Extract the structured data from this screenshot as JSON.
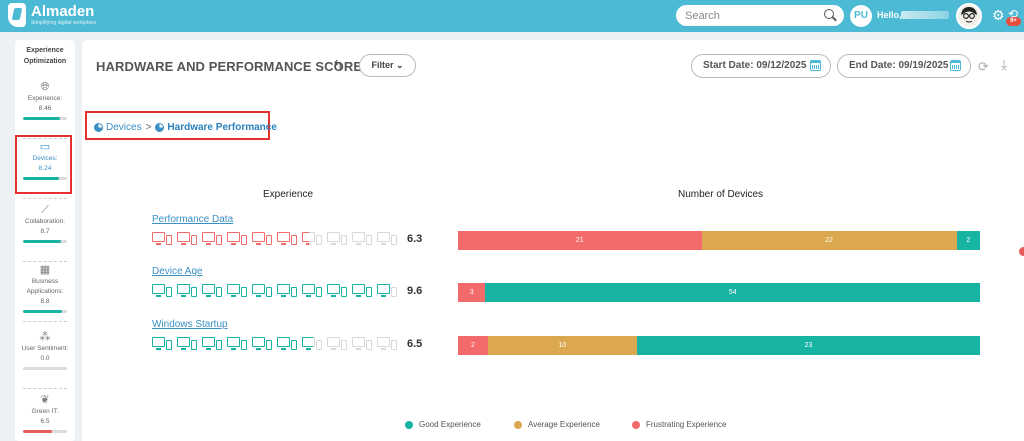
{
  "app": {
    "name": "Almaden",
    "tagline": "Simplifying digital workplace"
  },
  "header": {
    "search_placeholder": "Search",
    "avatar_initials": "PU",
    "greeting": "Hello,",
    "notification_badge": "9+"
  },
  "sidebar": {
    "heading": "Experience Optimization",
    "items": [
      {
        "label": "Experience:",
        "value": "8.46",
        "fill": 0.846,
        "color": "#17b3a3",
        "icon": "globe-icon"
      },
      {
        "label": "Devices:",
        "value": "8.24",
        "fill": 0.824,
        "color": "#17b3a3",
        "icon": "devices-icon"
      },
      {
        "label": "Collaboration:",
        "value": "8.7",
        "fill": 0.87,
        "color": "#17b3a3",
        "icon": "collaboration-icon"
      },
      {
        "label": "Business Applications:",
        "value": "8.8",
        "fill": 0.88,
        "color": "#17b3a3",
        "icon": "building-icon"
      },
      {
        "label": "User Sentiment:",
        "value": "0.0",
        "fill": 0.0,
        "color": "#17b3a3",
        "icon": "users-icon"
      },
      {
        "label": "Green IT:",
        "value": "6.5",
        "fill": 0.65,
        "color": "#e85a5a",
        "icon": "leaf-icon"
      }
    ]
  },
  "page": {
    "title": "HARDWARE AND PERFORMANCE SCORE",
    "filter_label": "Filter",
    "start_date_label": "Start Date: 09/12/2025",
    "end_date_label": "End Date: 09/19/2025"
  },
  "breadcrumb": {
    "root": "Devices",
    "separator": ">",
    "current": "Hardware Performance"
  },
  "columns": {
    "experience": "Experience",
    "devices": "Number of Devices"
  },
  "colors": {
    "good": "#17b3a3",
    "average": "#dba84f",
    "frustrating": "#f26a6a"
  },
  "metrics": [
    {
      "name": "Performance Data",
      "score": "6.3",
      "score_value": 6.3,
      "icon_color": "#f26a6a",
      "segments": [
        {
          "kind": "frustrating",
          "value": 21
        },
        {
          "kind": "average",
          "value": 22
        },
        {
          "kind": "good",
          "value": 2
        }
      ]
    },
    {
      "name": "Device Age",
      "score": "9.6",
      "score_value": 9.6,
      "icon_color": "#17b3a3",
      "segments": [
        {
          "kind": "frustrating",
          "value": 3
        },
        {
          "kind": "good",
          "value": 54
        }
      ]
    },
    {
      "name": "Windows Startup",
      "score": "6.5",
      "score_value": 6.5,
      "icon_color": "#17b3a3",
      "segments": [
        {
          "kind": "frustrating",
          "value": 2
        },
        {
          "kind": "average",
          "value": 10
        },
        {
          "kind": "good",
          "value": 23
        }
      ]
    }
  ],
  "legend": [
    {
      "label": "Good Experience",
      "kind": "good"
    },
    {
      "label": "Average Experience",
      "kind": "average"
    },
    {
      "label": "Frustrating Experience",
      "kind": "frustrating"
    }
  ]
}
